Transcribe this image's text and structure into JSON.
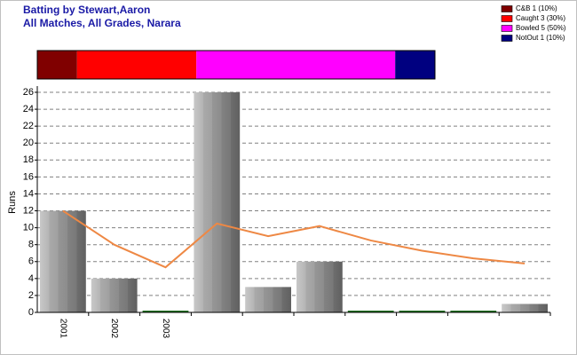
{
  "chart_data": [
    {
      "type": "stacked-bar",
      "title": "Batting by Stewart,Aaron",
      "subtitle": "All Matches, All Grades, Narara",
      "legend": "top-right",
      "series": [
        {
          "name": "C&B 1 (10%)",
          "color": "#800000",
          "values": [
            10
          ]
        },
        {
          "name": "Caught 3 (30%)",
          "color": "#ff0000",
          "values": [
            30
          ]
        },
        {
          "name": "Bowled 5 (50%)",
          "color": "#ff00ff",
          "values": [
            50
          ]
        },
        {
          "name": "NotOut 1 (10%)",
          "color": "#000080",
          "values": [
            10
          ]
        }
      ]
    },
    {
      "type": "bar",
      "y_label": "Runs",
      "categories": [
        "2001",
        "2002",
        "2003",
        null,
        null,
        null,
        null,
        null,
        null,
        null
      ],
      "series": [
        {
          "type": "bar",
          "color": "#a0a0a0",
          "values": [
            12,
            4,
            0,
            26,
            3,
            6,
            0,
            0,
            0,
            1
          ]
        },
        {
          "type": "line",
          "color": "#ee8844",
          "values": [
            12,
            8,
            5.33,
            10.5,
            9,
            10.2,
            8.5,
            7.29,
            6.38,
            5.78
          ]
        }
      ],
      "ylim": [
        0,
        26
      ],
      "yticks": [
        0,
        2,
        4,
        6,
        8,
        10,
        12,
        14,
        16,
        18,
        20,
        22,
        24,
        26
      ],
      "grid": true
    }
  ]
}
